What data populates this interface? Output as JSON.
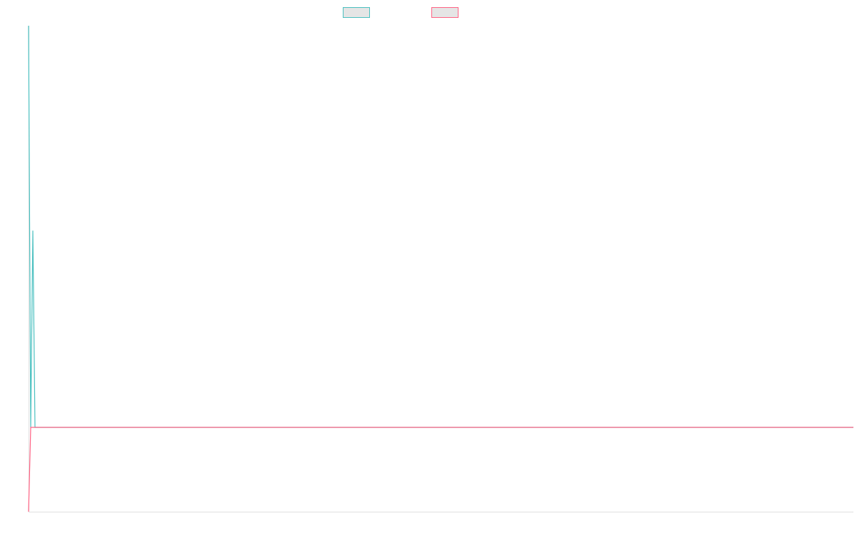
{
  "chart_data": {
    "type": "line",
    "title": "",
    "xlabel": "",
    "ylabel": "",
    "grid": false,
    "legend": "top-center",
    "xlim": [
      0,
      385
    ],
    "ylim": [
      -21,
      100
    ],
    "series": [
      {
        "color": "#4bc0c0",
        "x": [
          0,
          1,
          2,
          3,
          385
        ],
        "y": [
          100,
          0,
          49,
          0,
          0
        ]
      },
      {
        "color": "#ff6384",
        "x": [
          0,
          1,
          385
        ],
        "y": [
          -21,
          0,
          0
        ]
      }
    ]
  }
}
